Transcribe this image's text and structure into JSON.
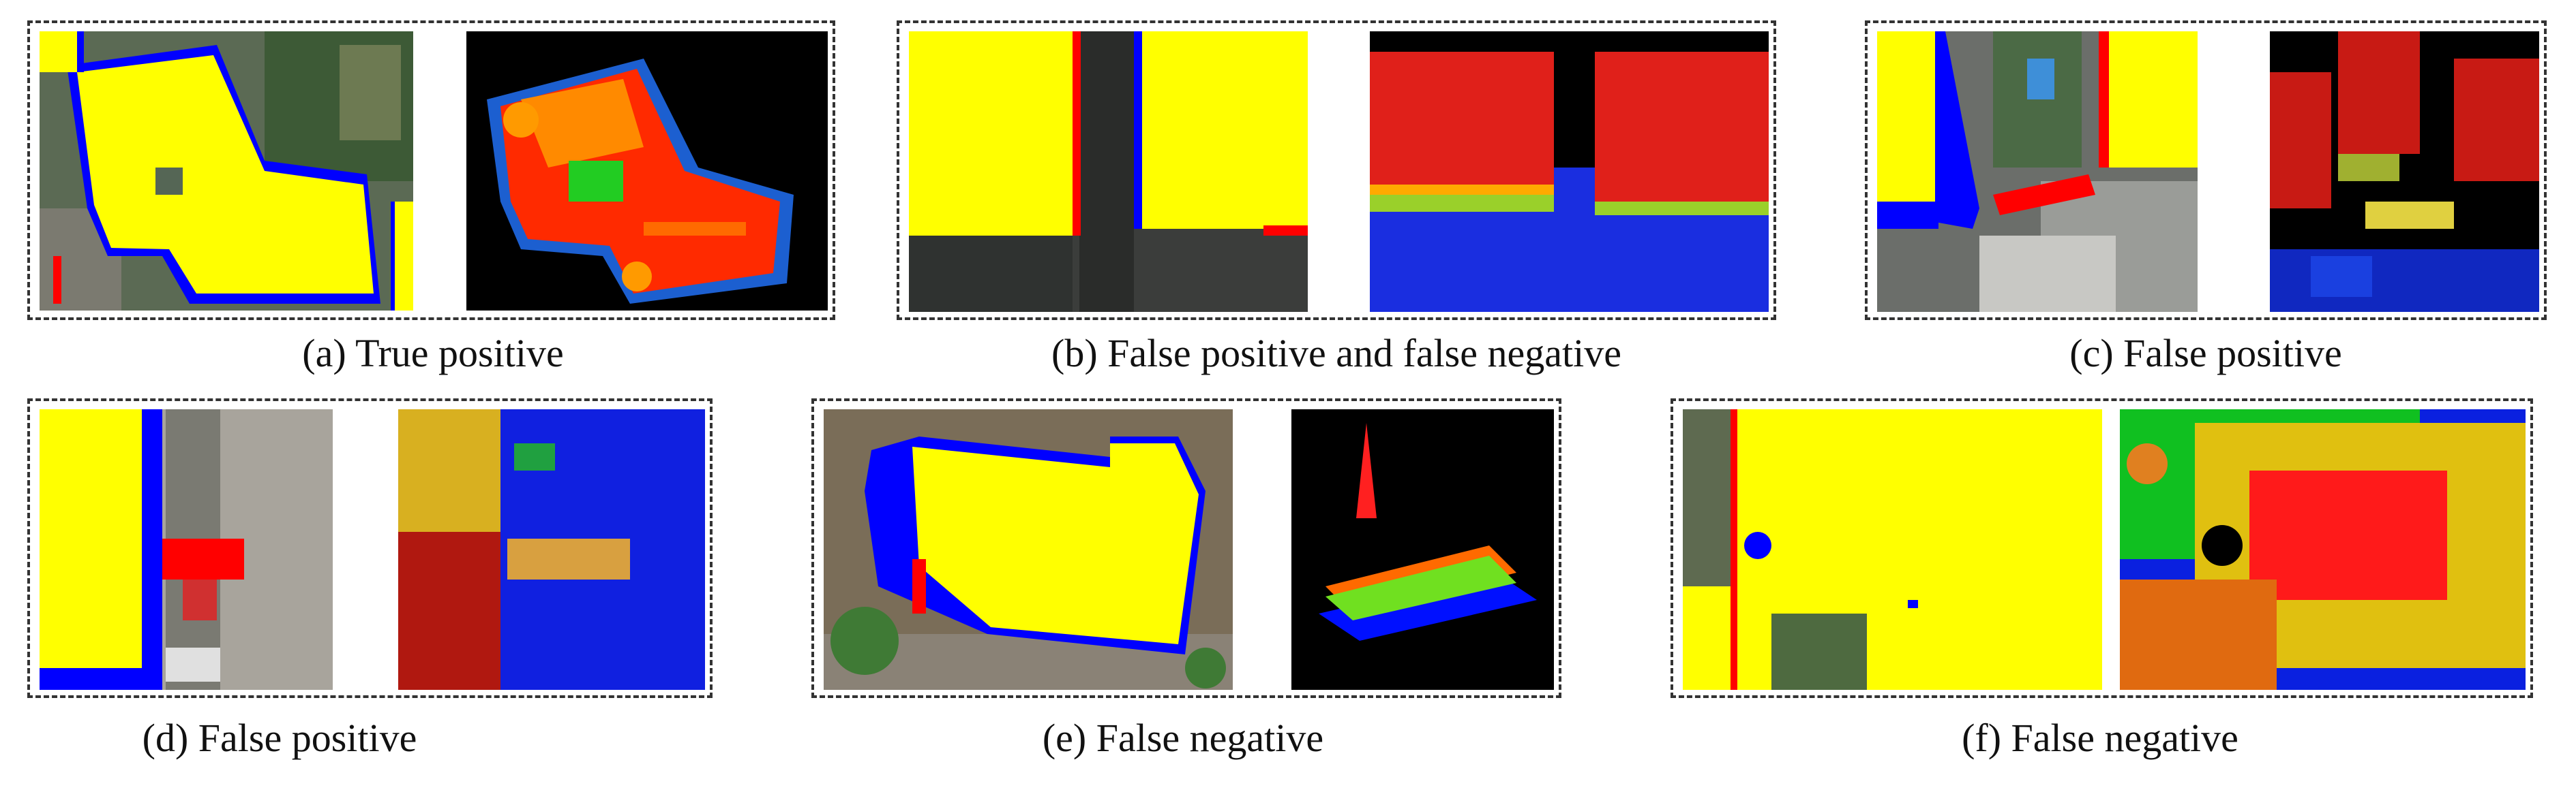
{
  "figure": {
    "panels": [
      {
        "id": "a",
        "caption": "(a) True positive"
      },
      {
        "id": "b",
        "caption": "(b) False positive and false negative"
      },
      {
        "id": "c",
        "caption": "(c) False positive"
      },
      {
        "id": "d",
        "caption": "(d) False positive"
      },
      {
        "id": "e",
        "caption": "(e) False negative"
      },
      {
        "id": "f",
        "caption": "(f) False negative"
      }
    ],
    "legend_colors": {
      "true_positive": "#ffff00",
      "false_positive": "#ff0000",
      "false_negative": "#0000ff",
      "point_cloud_background": "#000000"
    }
  }
}
